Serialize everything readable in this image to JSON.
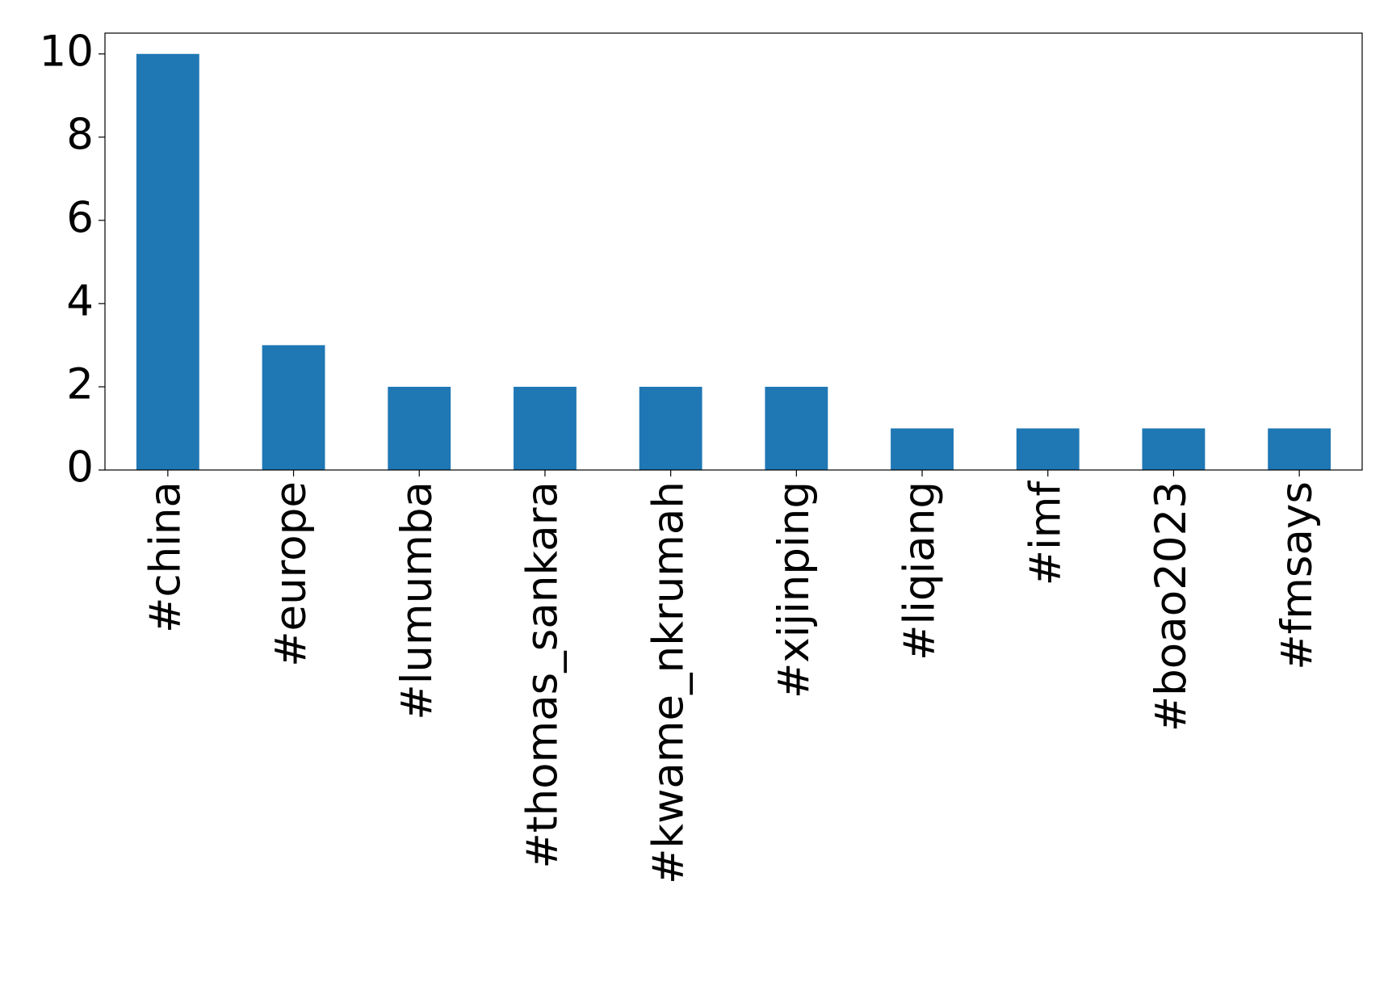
{
  "chart_data": {
    "type": "bar",
    "categories": [
      "#china",
      "#europe",
      "#lumumba",
      "#thomas_sankara",
      "#kwame_nkrumah",
      "#xijinping",
      "#liqiang",
      "#imf",
      "#boao2023",
      "#fmsays"
    ],
    "values": [
      10,
      3,
      2,
      2,
      2,
      2,
      1,
      1,
      1,
      1
    ],
    "color": "#1f77b4",
    "ylim": [
      0,
      10.5
    ],
    "yticks": [
      0,
      2,
      4,
      6,
      8,
      10
    ],
    "grid": false
  }
}
